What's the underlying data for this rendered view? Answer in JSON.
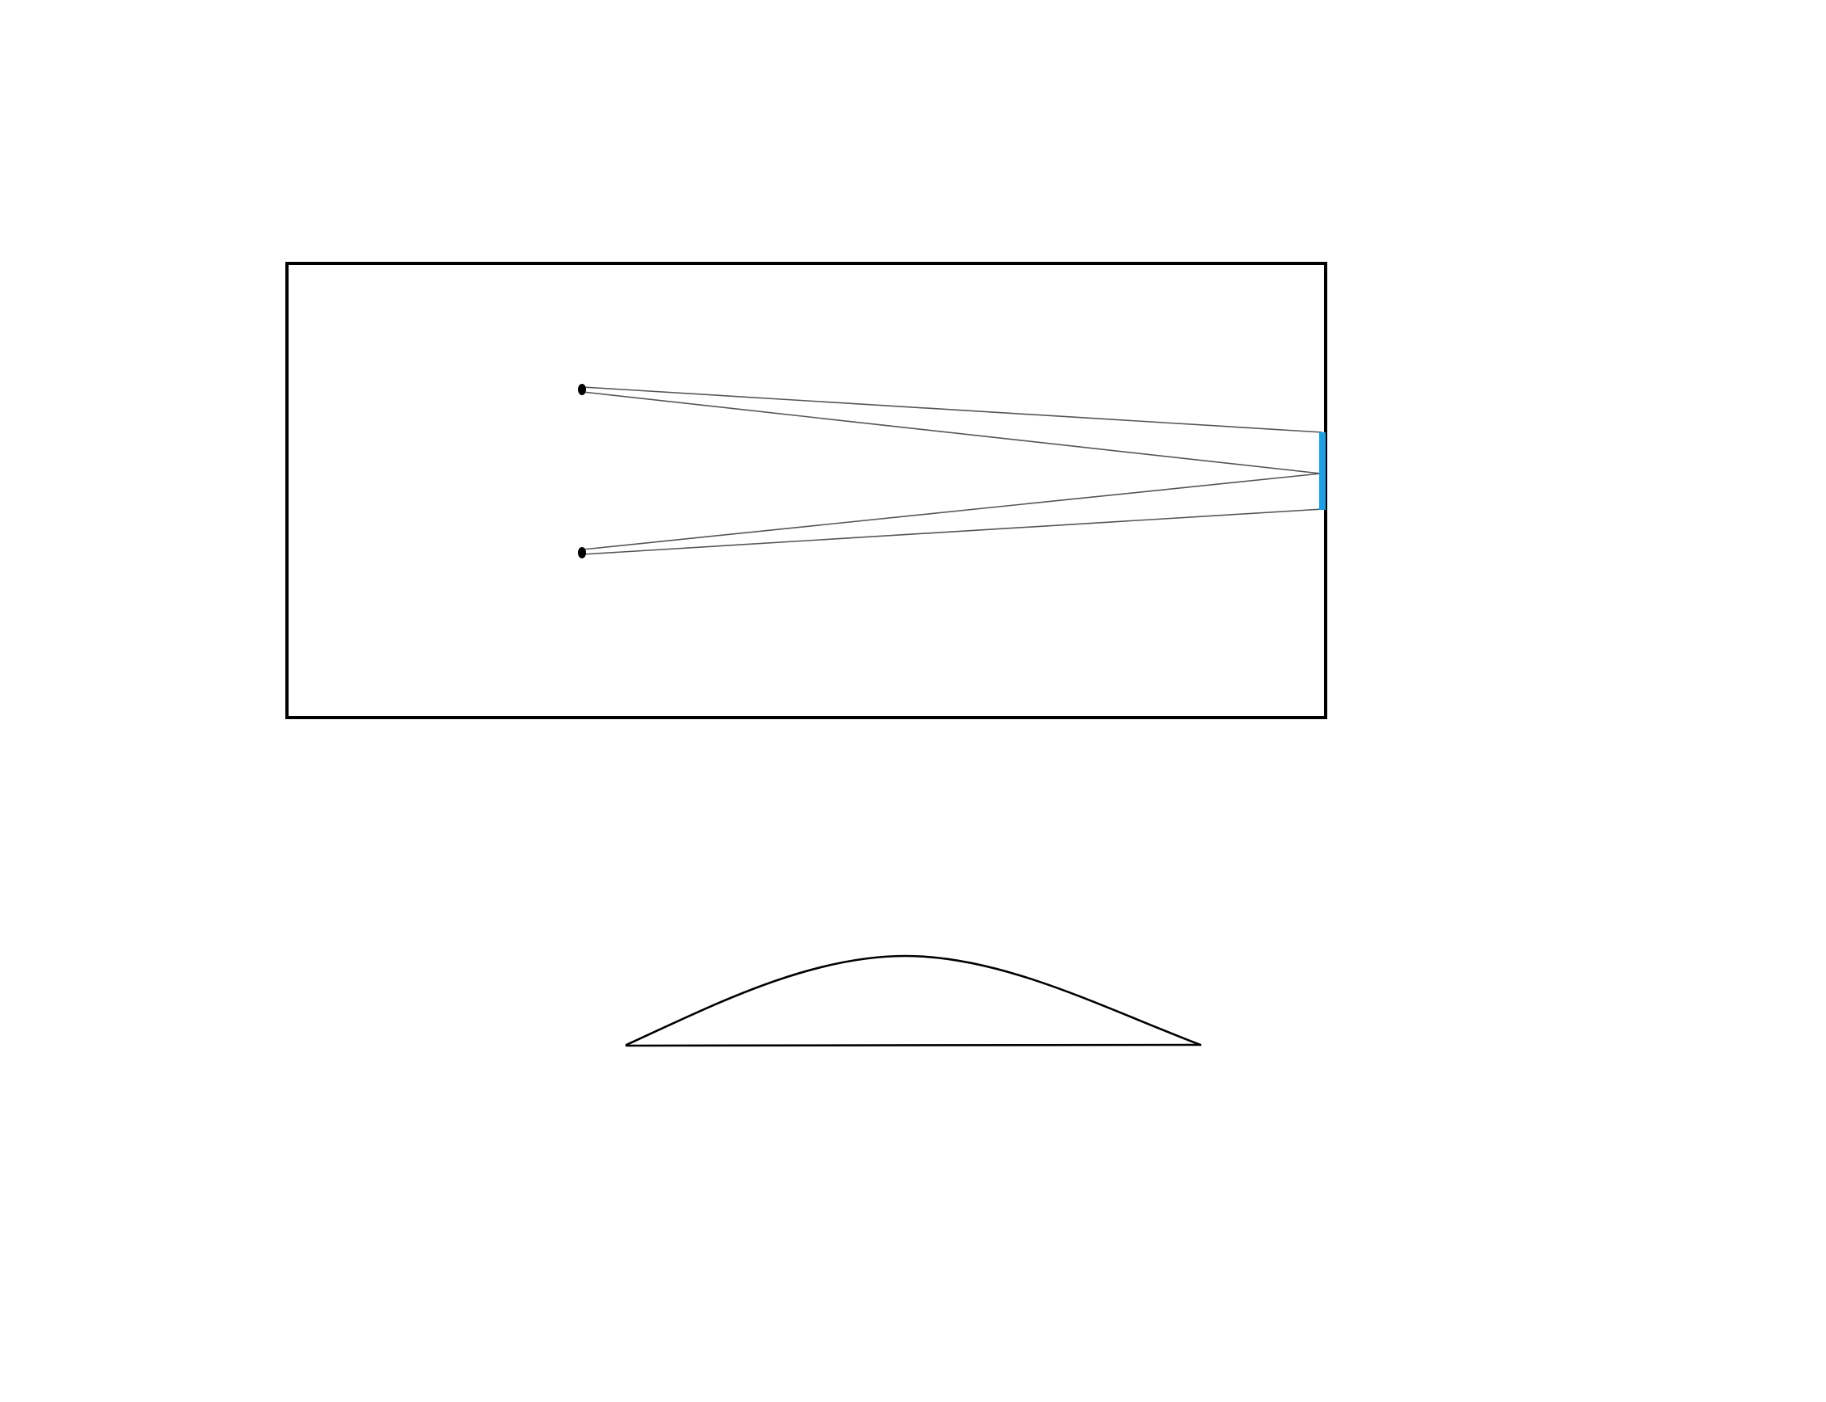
{
  "diagram": {
    "colors": {
      "background": "#ffffff",
      "outline": "#000000",
      "ray": "#555555",
      "mirror": "#1aa0e6",
      "source_point": "#000000"
    },
    "components": [
      "enclosure-frame",
      "upper-source-point",
      "lower-source-point",
      "mirror-strip",
      "ray-lines",
      "bell-curve"
    ]
  }
}
